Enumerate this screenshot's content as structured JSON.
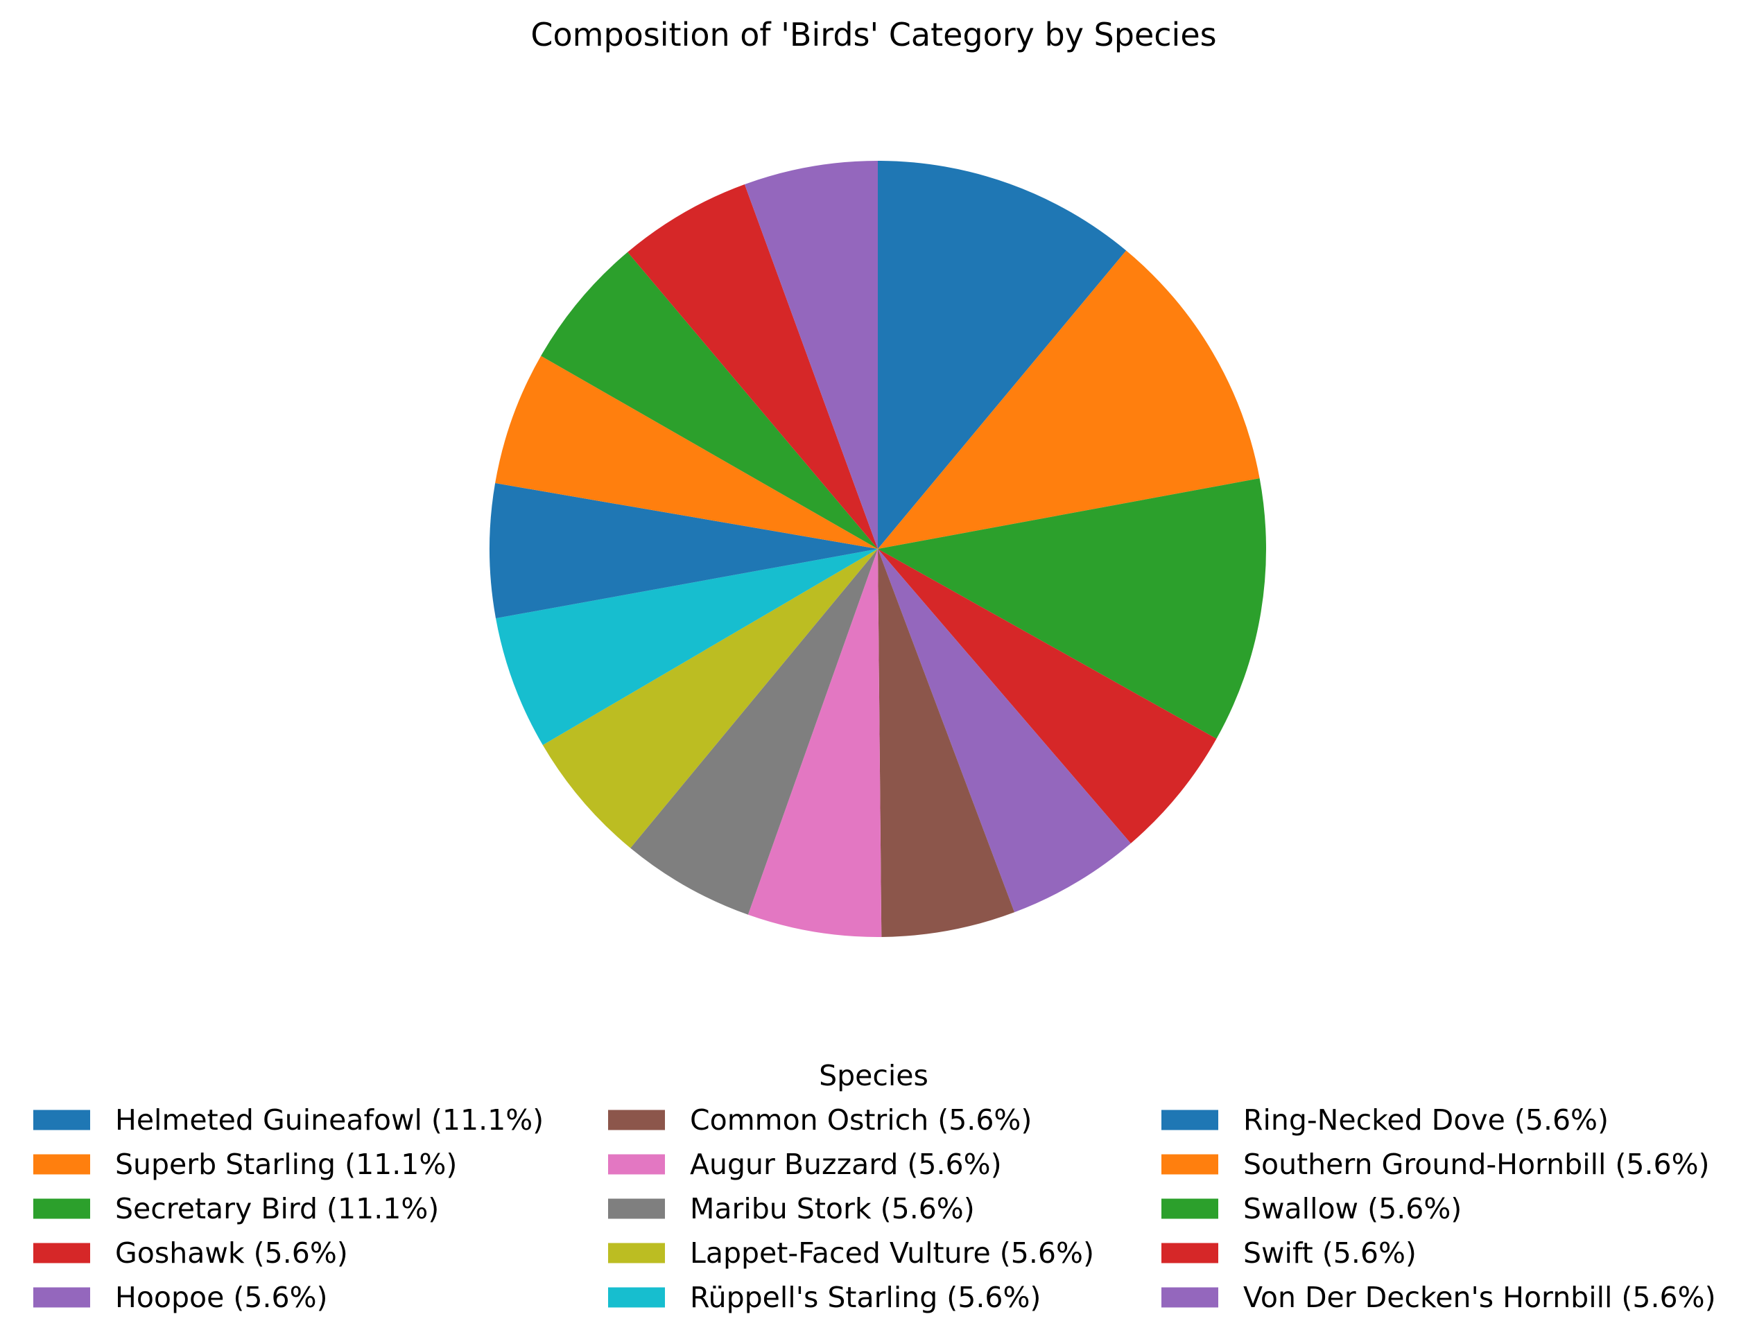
{
  "chart_data": {
    "type": "pie",
    "title": "Composition of 'Birds' Category by Species",
    "start_angle_deg": 90,
    "direction": "clockwise",
    "legend": {
      "title": "Species",
      "placement": "bottom-center",
      "columns": 3
    },
    "slices": [
      {
        "label": "Helmeted Guineafowl",
        "value": 11.1,
        "legend_text": "Helmeted Guineafowl (11.1%)",
        "color": "#1f77b4"
      },
      {
        "label": "Superb Starling",
        "value": 11.1,
        "legend_text": "Superb Starling (11.1%)",
        "color": "#ff7f0e"
      },
      {
        "label": "Secretary Bird",
        "value": 11.1,
        "legend_text": "Secretary Bird (11.1%)",
        "color": "#2ca02c"
      },
      {
        "label": "Goshawk",
        "value": 5.6,
        "legend_text": "Goshawk (5.6%)",
        "color": "#d62728"
      },
      {
        "label": "Hoopoe",
        "value": 5.6,
        "legend_text": "Hoopoe (5.6%)",
        "color": "#9467bd"
      },
      {
        "label": "Common Ostrich",
        "value": 5.6,
        "legend_text": "Common Ostrich (5.6%)",
        "color": "#8c564b"
      },
      {
        "label": "Augur Buzzard",
        "value": 5.6,
        "legend_text": "Augur Buzzard (5.6%)",
        "color": "#e377c2"
      },
      {
        "label": "Maribu Stork",
        "value": 5.6,
        "legend_text": "Maribu Stork (5.6%)",
        "color": "#7f7f7f"
      },
      {
        "label": "Lappet-Faced Vulture",
        "value": 5.6,
        "legend_text": "Lappet-Faced Vulture (5.6%)",
        "color": "#bcbd22"
      },
      {
        "label": "Rüppell's Starling",
        "value": 5.6,
        "legend_text": "Rüppell's Starling (5.6%)",
        "color": "#17becf"
      },
      {
        "label": "Ring-Necked Dove",
        "value": 5.6,
        "legend_text": "Ring-Necked Dove (5.6%)",
        "color": "#1f77b4"
      },
      {
        "label": "Southern Ground-Hornbill",
        "value": 5.6,
        "legend_text": "Southern Ground-Hornbill (5.6%)",
        "color": "#ff7f0e"
      },
      {
        "label": "Swallow",
        "value": 5.6,
        "legend_text": "Swallow (5.6%)",
        "color": "#2ca02c"
      },
      {
        "label": "Swift",
        "value": 5.6,
        "legend_text": "Swift (5.6%)",
        "color": "#d62728"
      },
      {
        "label": "Von Der Decken's Hornbill",
        "value": 5.6,
        "legend_text": "Von Der Decken's Hornbill (5.6%)",
        "color": "#9467bd"
      }
    ]
  }
}
